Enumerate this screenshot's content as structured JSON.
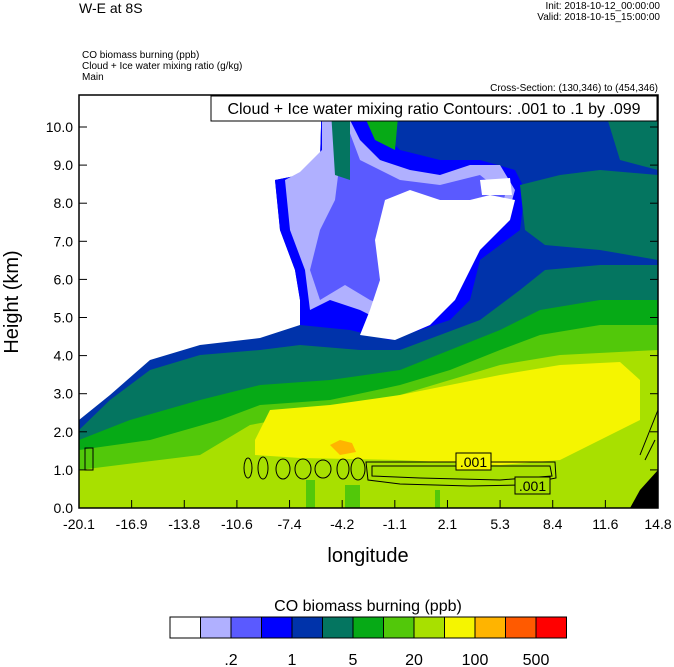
{
  "header": {
    "title": "W-E at 8S",
    "init": "Init: 2018-10-12_00:00:00",
    "valid": "Valid: 2018-10-15_15:00:00",
    "field1": "CO biomass burning   (ppb)",
    "field2": "Cloud + Ice water mixing ratio   (g/kg)",
    "field3": "Main",
    "cross_section": "Cross-Section: (130,346) to (454,346)"
  },
  "chart_data": {
    "type": "heatmap",
    "title": "W-E at 8S",
    "xlabel": "longitude",
    "ylabel": "Height (km)",
    "xlim": [
      -20.1,
      14.8
    ],
    "ylim": [
      0.0,
      10.8
    ],
    "xticks": [
      "-20.1",
      "-16.9",
      "-13.8",
      "-10.6",
      "-7.4",
      "-4.2",
      "-1.1",
      "2.1",
      "5.3",
      "8.4",
      "11.6",
      "14.8"
    ],
    "yticks": [
      "0.0",
      "1.0",
      "2.0",
      "3.0",
      "4.0",
      "5.0",
      "6.0",
      "7.0",
      "8.0",
      "9.0",
      "10.0"
    ],
    "contour_info": "Cloud + Ice water mixing ratio Contours: .001 to .1 by .099",
    "contour_labels": [
      ".001",
      ".001"
    ],
    "colorbar": {
      "title": "CO biomass burning  (ppb)",
      "colors": [
        "#ffffff",
        "#b0b0ff",
        "#5a5aff",
        "#0000ff",
        "#0033aa",
        "#047560",
        "#06aa16",
        "#52c80a",
        "#a8e000",
        "#f5f500",
        "#ffb400",
        "#ff5a00",
        "#ff0000"
      ],
      "labels": [
        ".2",
        "1",
        "5",
        "20",
        "100",
        "500"
      ]
    }
  }
}
